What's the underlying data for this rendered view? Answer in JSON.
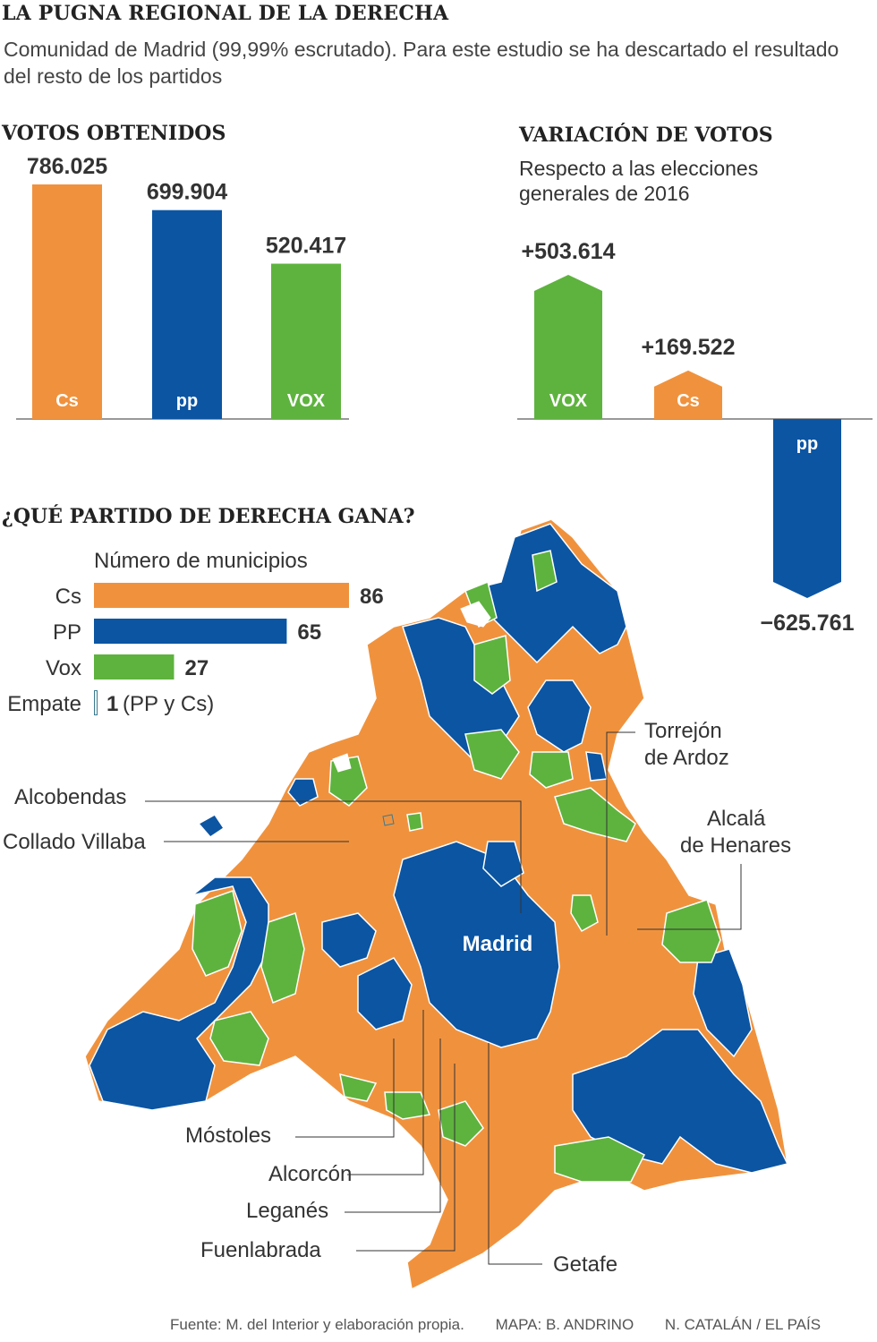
{
  "title": "LA PUGNA REGIONAL DE LA DERECHA",
  "subtitle": "Comunidad de Madrid (99,99% escrutado). Para este estudio se ha descartado el resultado del resto de los partidos",
  "colors": {
    "cs": "#f0923d",
    "pp": "#0b55a3",
    "vox": "#5eb33e",
    "text": "#222222"
  },
  "chart_data": [
    {
      "type": "bar",
      "title": "VOTOS OBTENIDOS",
      "categories": [
        "Cs",
        "PP",
        "Vox"
      ],
      "values": [
        786025,
        699904,
        520417
      ],
      "labels": [
        "786.025",
        "699.904",
        "520.417"
      ],
      "logos": [
        "Cs",
        "pp",
        "VOX"
      ]
    },
    {
      "type": "bar",
      "title": "VARIACIÓN DE VOTOS",
      "subtitle": "Respecto a las elecciones generales de 2016",
      "categories": [
        "Vox",
        "Cs",
        "PP"
      ],
      "values": [
        503614,
        169522,
        -625761
      ],
      "labels": [
        "+503.614",
        "+169.522",
        "−625.761"
      ],
      "logos": [
        "VOX",
        "Cs",
        "pp"
      ]
    },
    {
      "type": "bar",
      "title": "¿QUÉ PARTIDO DE DERECHA GANA?",
      "subtitle": "Número de municipios",
      "categories": [
        "Cs",
        "PP",
        "Vox",
        "Empate"
      ],
      "values": [
        86,
        65,
        27,
        1
      ],
      "labels": [
        "86",
        "65",
        "27",
        "1"
      ],
      "tie_note": "(PP y Cs)"
    }
  ],
  "map": {
    "center_label": "Madrid",
    "callouts": [
      "Torrejón de Ardoz",
      "Alcalá de Henares",
      "Alcobendas",
      "Collado Villaba",
      "Móstoles",
      "Alcorcón",
      "Leganés",
      "Fuenlabrada",
      "Getafe"
    ],
    "callout_lines": {
      "torrejon": [
        "Torrejón",
        "de Ardoz"
      ],
      "alcala": [
        "Alcalá",
        "de Henares"
      ]
    }
  },
  "credits": {
    "source": "Fuente: M. del Interior y elaboración propia.",
    "map_author": "MAPA: B. ANDRINO",
    "author": "N. CATALÁN / EL PAÍS"
  }
}
